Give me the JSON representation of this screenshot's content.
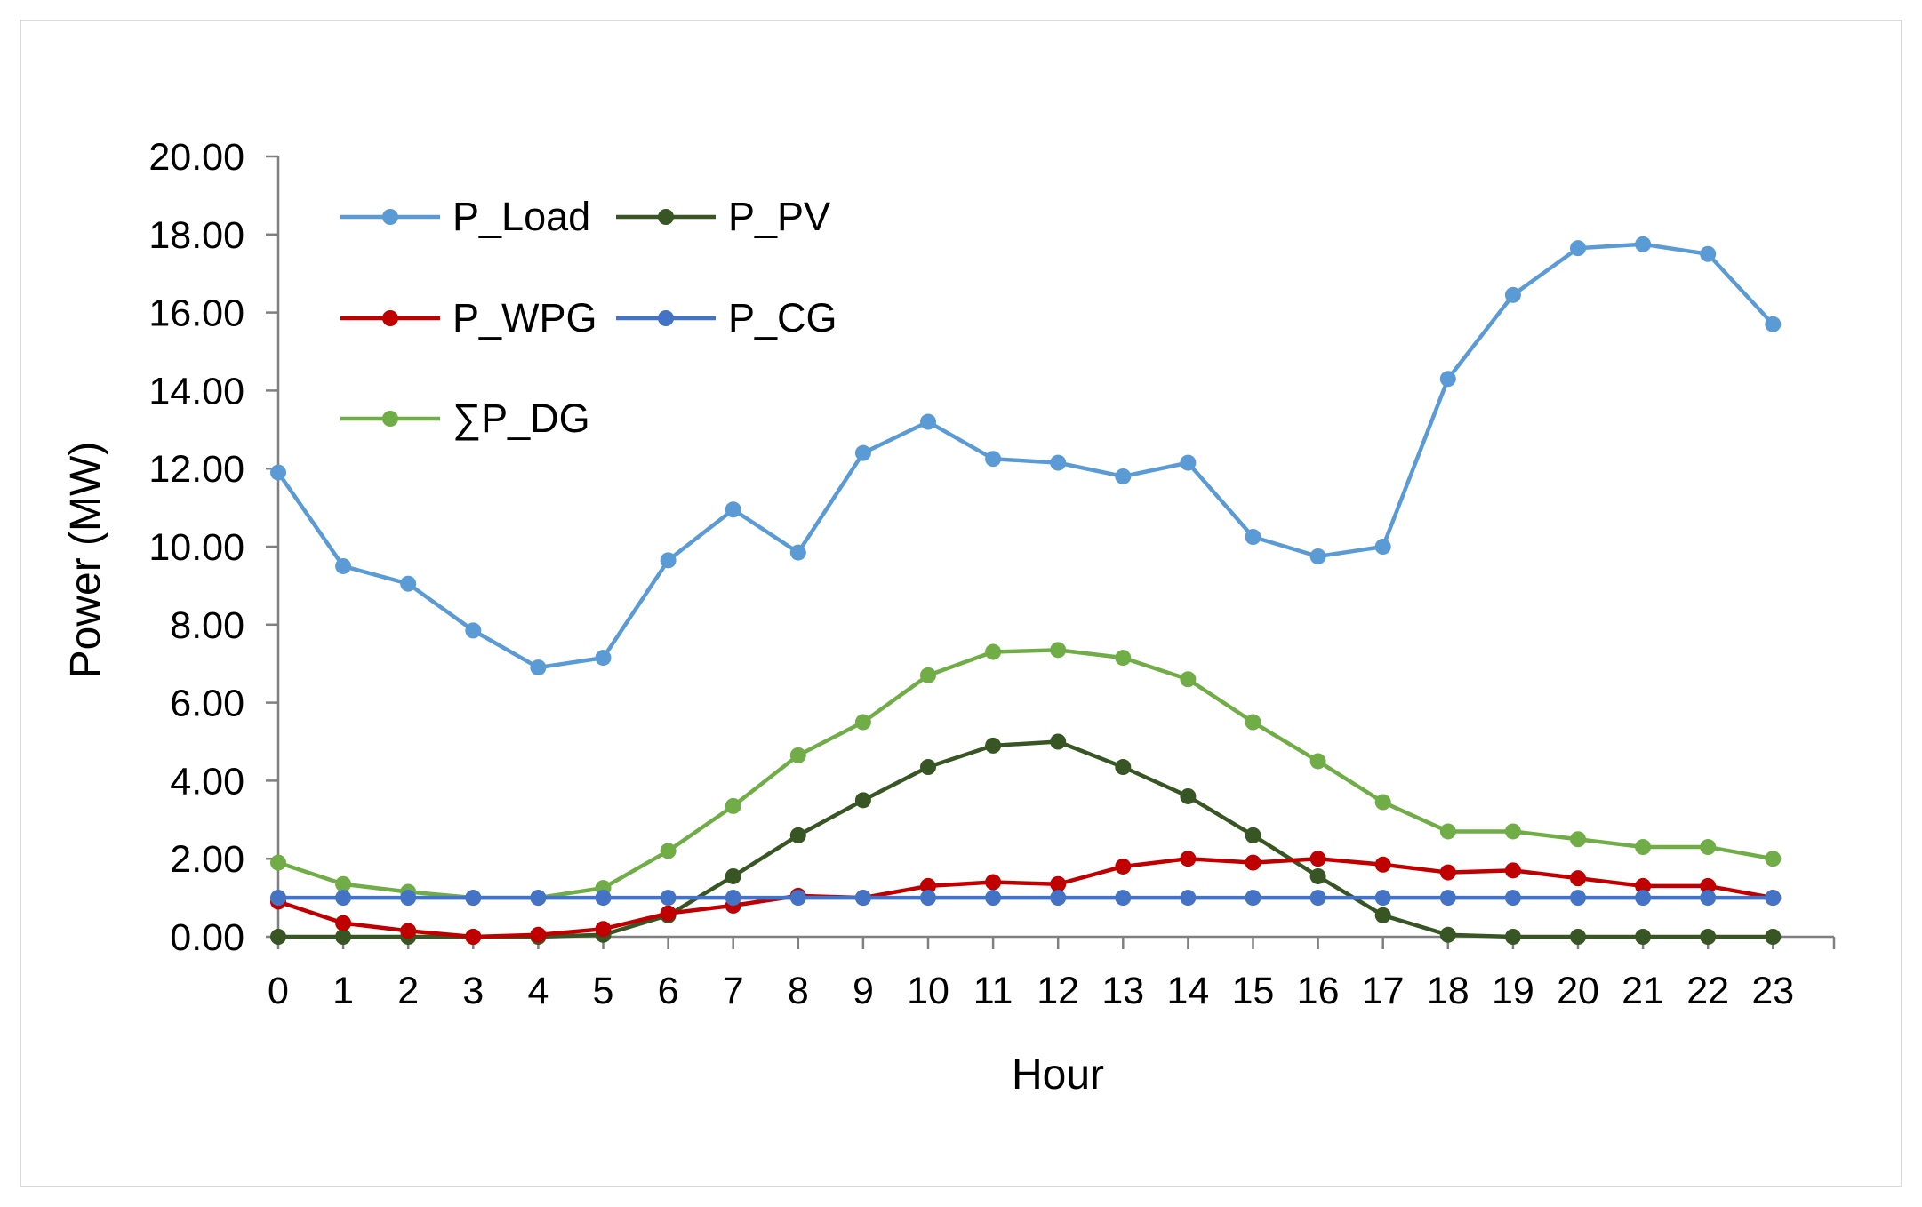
{
  "chart_data": {
    "type": "line",
    "title": "",
    "xlabel": "Hour",
    "ylabel": "Power (MW)",
    "categories": [
      "0",
      "1",
      "2",
      "3",
      "4",
      "5",
      "6",
      "7",
      "8",
      "9",
      "10",
      "11",
      "12",
      "13",
      "14",
      "15",
      "16",
      "17",
      "18",
      "19",
      "20",
      "21",
      "22",
      "23"
    ],
    "ylim": [
      0,
      20
    ],
    "y_ticks": [
      "0.00",
      "2.00",
      "4.00",
      "6.00",
      "8.00",
      "10.00",
      "12.00",
      "14.00",
      "16.00",
      "18.00",
      "20.00"
    ],
    "grid": false,
    "legend_position": "top-left",
    "series": [
      {
        "name": "P_Load",
        "color": "#5b9bd5",
        "values": [
          11.9,
          9.5,
          9.05,
          7.85,
          6.9,
          7.15,
          9.65,
          10.95,
          9.85,
          12.4,
          13.2,
          12.25,
          12.15,
          11.8,
          12.15,
          10.25,
          9.75,
          10.0,
          14.3,
          16.45,
          17.65,
          17.75,
          17.5,
          15.7
        ]
      },
      {
        "name": "P_PV",
        "color": "#375623",
        "values": [
          0.0,
          0.0,
          0.0,
          0.0,
          0.0,
          0.05,
          0.55,
          1.55,
          2.6,
          3.5,
          4.35,
          4.9,
          5.0,
          4.35,
          3.6,
          2.6,
          1.55,
          0.55,
          0.05,
          0.0,
          0.0,
          0.0,
          0.0,
          0.0
        ]
      },
      {
        "name": "P_WPG",
        "color": "#c00000",
        "values": [
          0.9,
          0.35,
          0.15,
          0.0,
          0.05,
          0.2,
          0.6,
          0.8,
          1.05,
          1.0,
          1.3,
          1.4,
          1.35,
          1.8,
          2.0,
          1.9,
          2.0,
          1.85,
          1.65,
          1.7,
          1.5,
          1.3,
          1.3,
          1.0
        ]
      },
      {
        "name": "P_CG",
        "color": "#4472c4",
        "values": [
          1.0,
          1.0,
          1.0,
          1.0,
          1.0,
          1.0,
          1.0,
          1.0,
          1.0,
          1.0,
          1.0,
          1.0,
          1.0,
          1.0,
          1.0,
          1.0,
          1.0,
          1.0,
          1.0,
          1.0,
          1.0,
          1.0,
          1.0,
          1.0
        ]
      },
      {
        "name": "∑P_DG",
        "color": "#70ad47",
        "values": [
          1.9,
          1.35,
          1.15,
          1.0,
          1.0,
          1.25,
          2.2,
          3.35,
          4.65,
          5.5,
          6.7,
          7.3,
          7.35,
          7.15,
          6.6,
          5.5,
          4.5,
          3.45,
          2.7,
          2.7,
          2.5,
          2.3,
          2.3,
          2.0
        ]
      }
    ]
  }
}
